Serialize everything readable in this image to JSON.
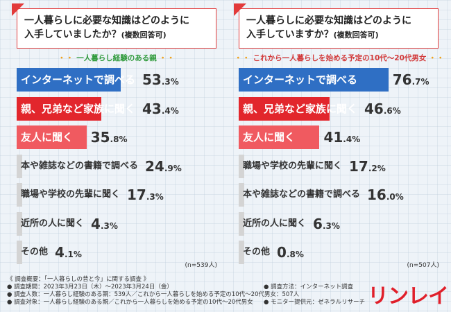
{
  "panels": [
    {
      "question_line1": "一人暮らしに必要な知識はどのように",
      "question_line2": "入手していましたか？",
      "question_note": "(複数回答可)",
      "subtitle": "一人暮らし経験のある親",
      "n_label": "(n=539人)"
    },
    {
      "question_line1": "一人暮らしに必要な知識はどのように",
      "question_line2": "入手していますか？",
      "question_note": "(複数回答可)",
      "subtitle": "これから一人暮らしを始める予定の10代～20代男女",
      "n_label": "(n=507人)"
    }
  ],
  "chart_data": [
    {
      "type": "bar",
      "orientation": "horizontal",
      "title": "一人暮らしに必要な知識はどのように入手していましたか？(複数回答可)",
      "subtitle": "一人暮らし経験のある親",
      "categories": [
        "インターネットで調べる",
        "親、兄弟など家族に聞く",
        "友人に聞く",
        "本や雑誌などの書籍で調べる",
        "職場や学校の先輩に聞く",
        "近所の人に聞く",
        "その他"
      ],
      "values": [
        53.3,
        43.4,
        35.8,
        24.9,
        17.3,
        4.3,
        4.1
      ],
      "display": [
        [
          "53",
          ".3",
          "%"
        ],
        [
          "43",
          ".4",
          "%"
        ],
        [
          "35",
          ".8",
          "%"
        ],
        [
          "24",
          ".9",
          "%"
        ],
        [
          "17",
          ".3",
          "%"
        ],
        [
          "4",
          ".3",
          "%"
        ],
        [
          "4",
          ".1",
          "%"
        ]
      ],
      "unit": "%",
      "colors": [
        "#2f6fc4",
        "#e2262c",
        "#f05a60",
        "#d4d4d4",
        "#d4d4d4",
        "#d4d4d4",
        "#d4d4d4"
      ],
      "label_colors": [
        "#ffffff",
        "#ffffff",
        "#ffffff",
        "#333333",
        "#333333",
        "#333333",
        "#333333"
      ],
      "n": "(n=539人)"
    },
    {
      "type": "bar",
      "orientation": "horizontal",
      "title": "一人暮らしに必要な知識はどのように入手していますか？(複数回答可)",
      "subtitle": "これから一人暮らしを始める予定の10代～20代男女",
      "categories": [
        "インターネットで調べる",
        "親、兄弟など家族に聞く",
        "友人に聞く",
        "職場や学校の先輩に聞く",
        "本や雑誌などの書籍で調べる",
        "近所の人に聞く",
        "その他"
      ],
      "values": [
        76.7,
        46.6,
        41.4,
        17.2,
        16.0,
        6.3,
        0.8
      ],
      "display": [
        [
          "76",
          ".7",
          "%"
        ],
        [
          "46",
          ".6",
          "%"
        ],
        [
          "41",
          ".4",
          "%"
        ],
        [
          "17",
          ".2",
          "%"
        ],
        [
          "16",
          ".0",
          "%"
        ],
        [
          "6",
          ".3",
          "%"
        ],
        [
          "0",
          ".8",
          "%"
        ]
      ],
      "unit": "%",
      "colors": [
        "#2f6fc4",
        "#e2262c",
        "#f05a60",
        "#d4d4d4",
        "#d4d4d4",
        "#d4d4d4",
        "#d4d4d4"
      ],
      "label_colors": [
        "#ffffff",
        "#ffffff",
        "#ffffff",
        "#333333",
        "#333333",
        "#333333",
        "#333333"
      ],
      "n": "(n=507人)"
    }
  ],
  "footer": {
    "line1": "《 調査概要：「一人暮らしの昔と今」に関する調査 》",
    "line2": "● 調査期間：2023年3月23日（木）～2023年3月24日（金）",
    "line3": "● 調査人数：一人暮らし経験のある親：539人／これから一人暮らしを始める予定の10代～20代男女：507人",
    "line4": "● 調査対象：一人暮らし経験のある親／これから一人暮らしを始める予定の10代～20代男女",
    "method": "● 調査方法：インターネット調査",
    "provider": "● モニター提供元：ゼネラルリサーチ"
  },
  "logo": "リンレイ"
}
